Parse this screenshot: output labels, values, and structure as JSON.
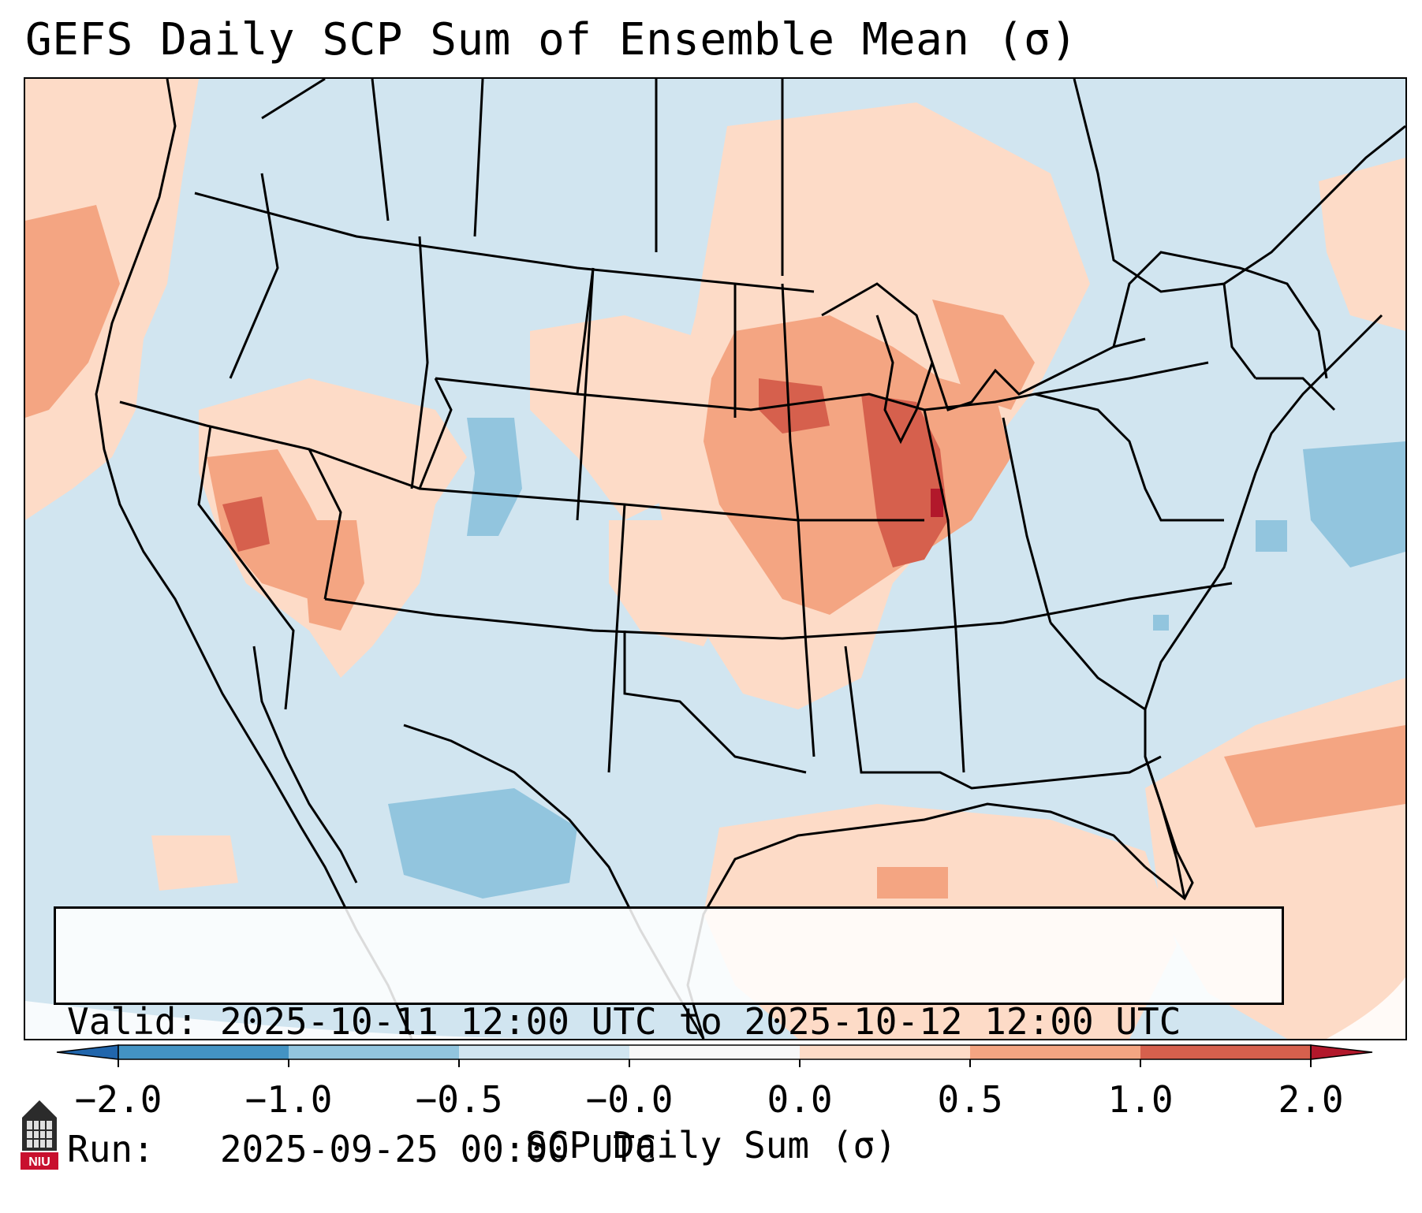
{
  "title": "GEFS Daily SCP Sum of Ensemble Mean (σ)",
  "info": {
    "valid_line": "Valid: 2025-10-11 12:00 UTC to 2025-10-12 12:00 UTC",
    "run_line": "Run:   2025-09-25 00:00 UTC"
  },
  "colorbar": {
    "label": "SCP Daily Sum (σ)",
    "ticks": [
      "−2.0",
      "−1.0",
      "−0.5",
      "−0.0",
      "0.0",
      "0.5",
      "1.0",
      "2.0"
    ],
    "bin_colors": [
      "#4393c3",
      "#92c5de",
      "#d1e5f0",
      "#f7f7f7",
      "#fddbc7",
      "#f4a582",
      "#d6604d"
    ],
    "under_color": "#2166ac",
    "over_color": "#b2182b"
  },
  "map": {
    "ocean_color": "#d1e5f0",
    "boundary_color": "#000000"
  },
  "logo": {
    "text": "NIU"
  }
}
